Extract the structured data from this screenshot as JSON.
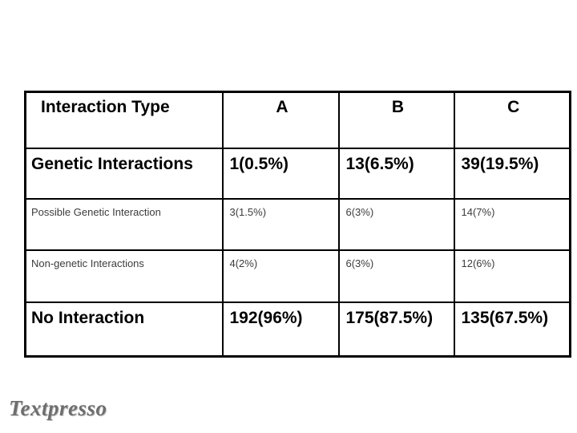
{
  "chart_data": {
    "type": "table",
    "title": "",
    "columns": [
      "Interaction Type",
      "A",
      "B",
      "C"
    ],
    "rows": [
      [
        "Genetic Interactions",
        "1(0.5%)",
        "13(6.5%)",
        "39(19.5%)"
      ],
      [
        "Possible Genetic Interaction",
        "3(1.5%)",
        "6(3%)",
        "14(7%)"
      ],
      [
        "Non-genetic Interactions",
        "4(2%)",
        "6(3%)",
        "12(6%)"
      ],
      [
        "No Interaction",
        "192(96%)",
        "175(87.5%)",
        "135(67.5%)"
      ]
    ],
    "layout_hints": {
      "emphasized_rows": [
        0,
        3
      ],
      "grid": "on",
      "header_alignment": "letters centered, label left",
      "cell_alignment": "top-left"
    }
  },
  "footer": {
    "logo_text": "Textpresso"
  },
  "colors": {
    "background": "#ffffff",
    "table_border": "#000000",
    "text_primary": "#000000",
    "text_secondary": "#3c3c3c",
    "logo_gray": "#6e6e6e"
  }
}
